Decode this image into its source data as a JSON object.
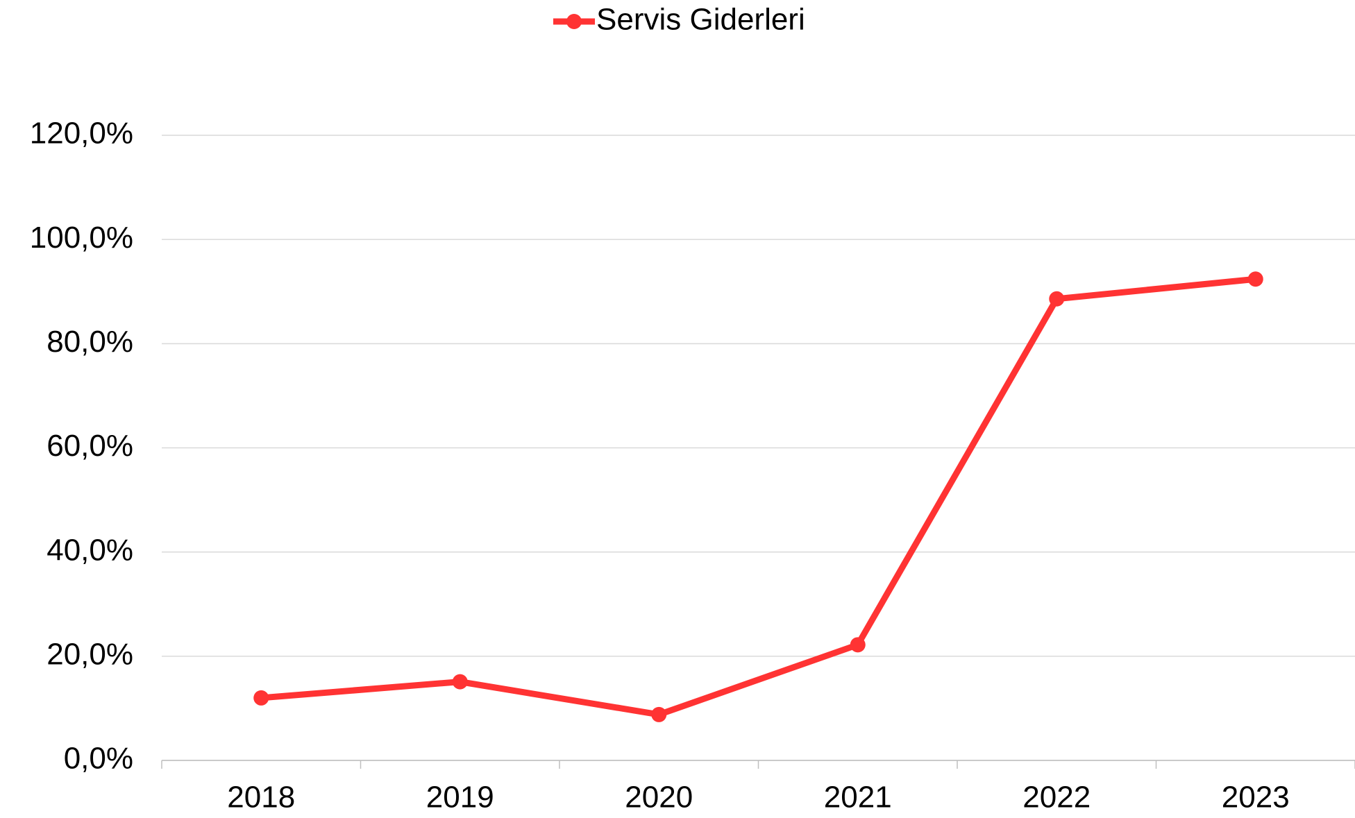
{
  "chart_data": {
    "type": "line",
    "categories": [
      "2018",
      "2019",
      "2020",
      "2021",
      "2022",
      "2023"
    ],
    "series": [
      {
        "name": "Servis Giderleri",
        "color": "#ff3333",
        "values": [
          12.0,
          15.1,
          8.8,
          22.2,
          88.6,
          92.4
        ]
      }
    ],
    "ylim": [
      0,
      120
    ],
    "yticks": [
      {
        "value": 0,
        "label": "0,0%"
      },
      {
        "value": 20,
        "label": "20,0%"
      },
      {
        "value": 40,
        "label": "40,0%"
      },
      {
        "value": 60,
        "label": "60,0%"
      },
      {
        "value": 80,
        "label": "80,0%"
      },
      {
        "value": 100,
        "label": "100,0%"
      },
      {
        "value": 120,
        "label": "120,0%"
      }
    ],
    "grid": true,
    "legend": "top"
  }
}
